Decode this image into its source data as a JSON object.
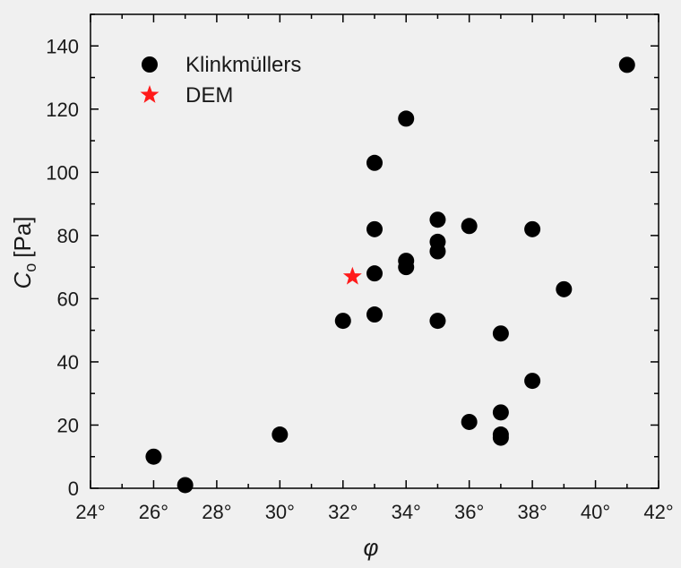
{
  "chart_data": {
    "type": "scatter",
    "title": "",
    "xlabel": "φ",
    "ylabel_main": "C",
    "ylabel_sub": "o",
    "ylabel_unit": "[Pa]",
    "xlim": [
      24,
      42
    ],
    "ylim": [
      0,
      150
    ],
    "xticks": [
      24,
      26,
      28,
      30,
      32,
      34,
      36,
      38,
      40,
      42
    ],
    "xtick_labels": [
      "24°",
      "26°",
      "28°",
      "30°",
      "32°",
      "34°",
      "36°",
      "38°",
      "40°",
      "42°"
    ],
    "yticks": [
      0,
      20,
      40,
      60,
      80,
      100,
      120,
      140
    ],
    "ytick_labels": [
      "0",
      "20",
      "40",
      "60",
      "80",
      "100",
      "120",
      "140"
    ],
    "grid": false,
    "legend_position": "top-left",
    "series": [
      {
        "name": "Klinkmüllers",
        "marker": "circle",
        "color": "#000000",
        "points": [
          {
            "x": 26,
            "y": 10
          },
          {
            "x": 27,
            "y": 1
          },
          {
            "x": 30,
            "y": 17
          },
          {
            "x": 32,
            "y": 53
          },
          {
            "x": 33,
            "y": 55
          },
          {
            "x": 33,
            "y": 68
          },
          {
            "x": 33,
            "y": 82
          },
          {
            "x": 33,
            "y": 103
          },
          {
            "x": 34,
            "y": 70
          },
          {
            "x": 34,
            "y": 72
          },
          {
            "x": 34,
            "y": 117
          },
          {
            "x": 35,
            "y": 53
          },
          {
            "x": 35,
            "y": 75
          },
          {
            "x": 35,
            "y": 78
          },
          {
            "x": 35,
            "y": 85
          },
          {
            "x": 36,
            "y": 21
          },
          {
            "x": 36,
            "y": 83
          },
          {
            "x": 37,
            "y": 16
          },
          {
            "x": 37,
            "y": 17
          },
          {
            "x": 37,
            "y": 24
          },
          {
            "x": 37,
            "y": 49
          },
          {
            "x": 38,
            "y": 34
          },
          {
            "x": 38,
            "y": 82
          },
          {
            "x": 39,
            "y": 63
          },
          {
            "x": 41,
            "y": 134
          }
        ]
      },
      {
        "name": "DEM",
        "marker": "star",
        "color": "#ff1a1a",
        "points": [
          {
            "x": 32.3,
            "y": 67
          }
        ]
      }
    ]
  }
}
